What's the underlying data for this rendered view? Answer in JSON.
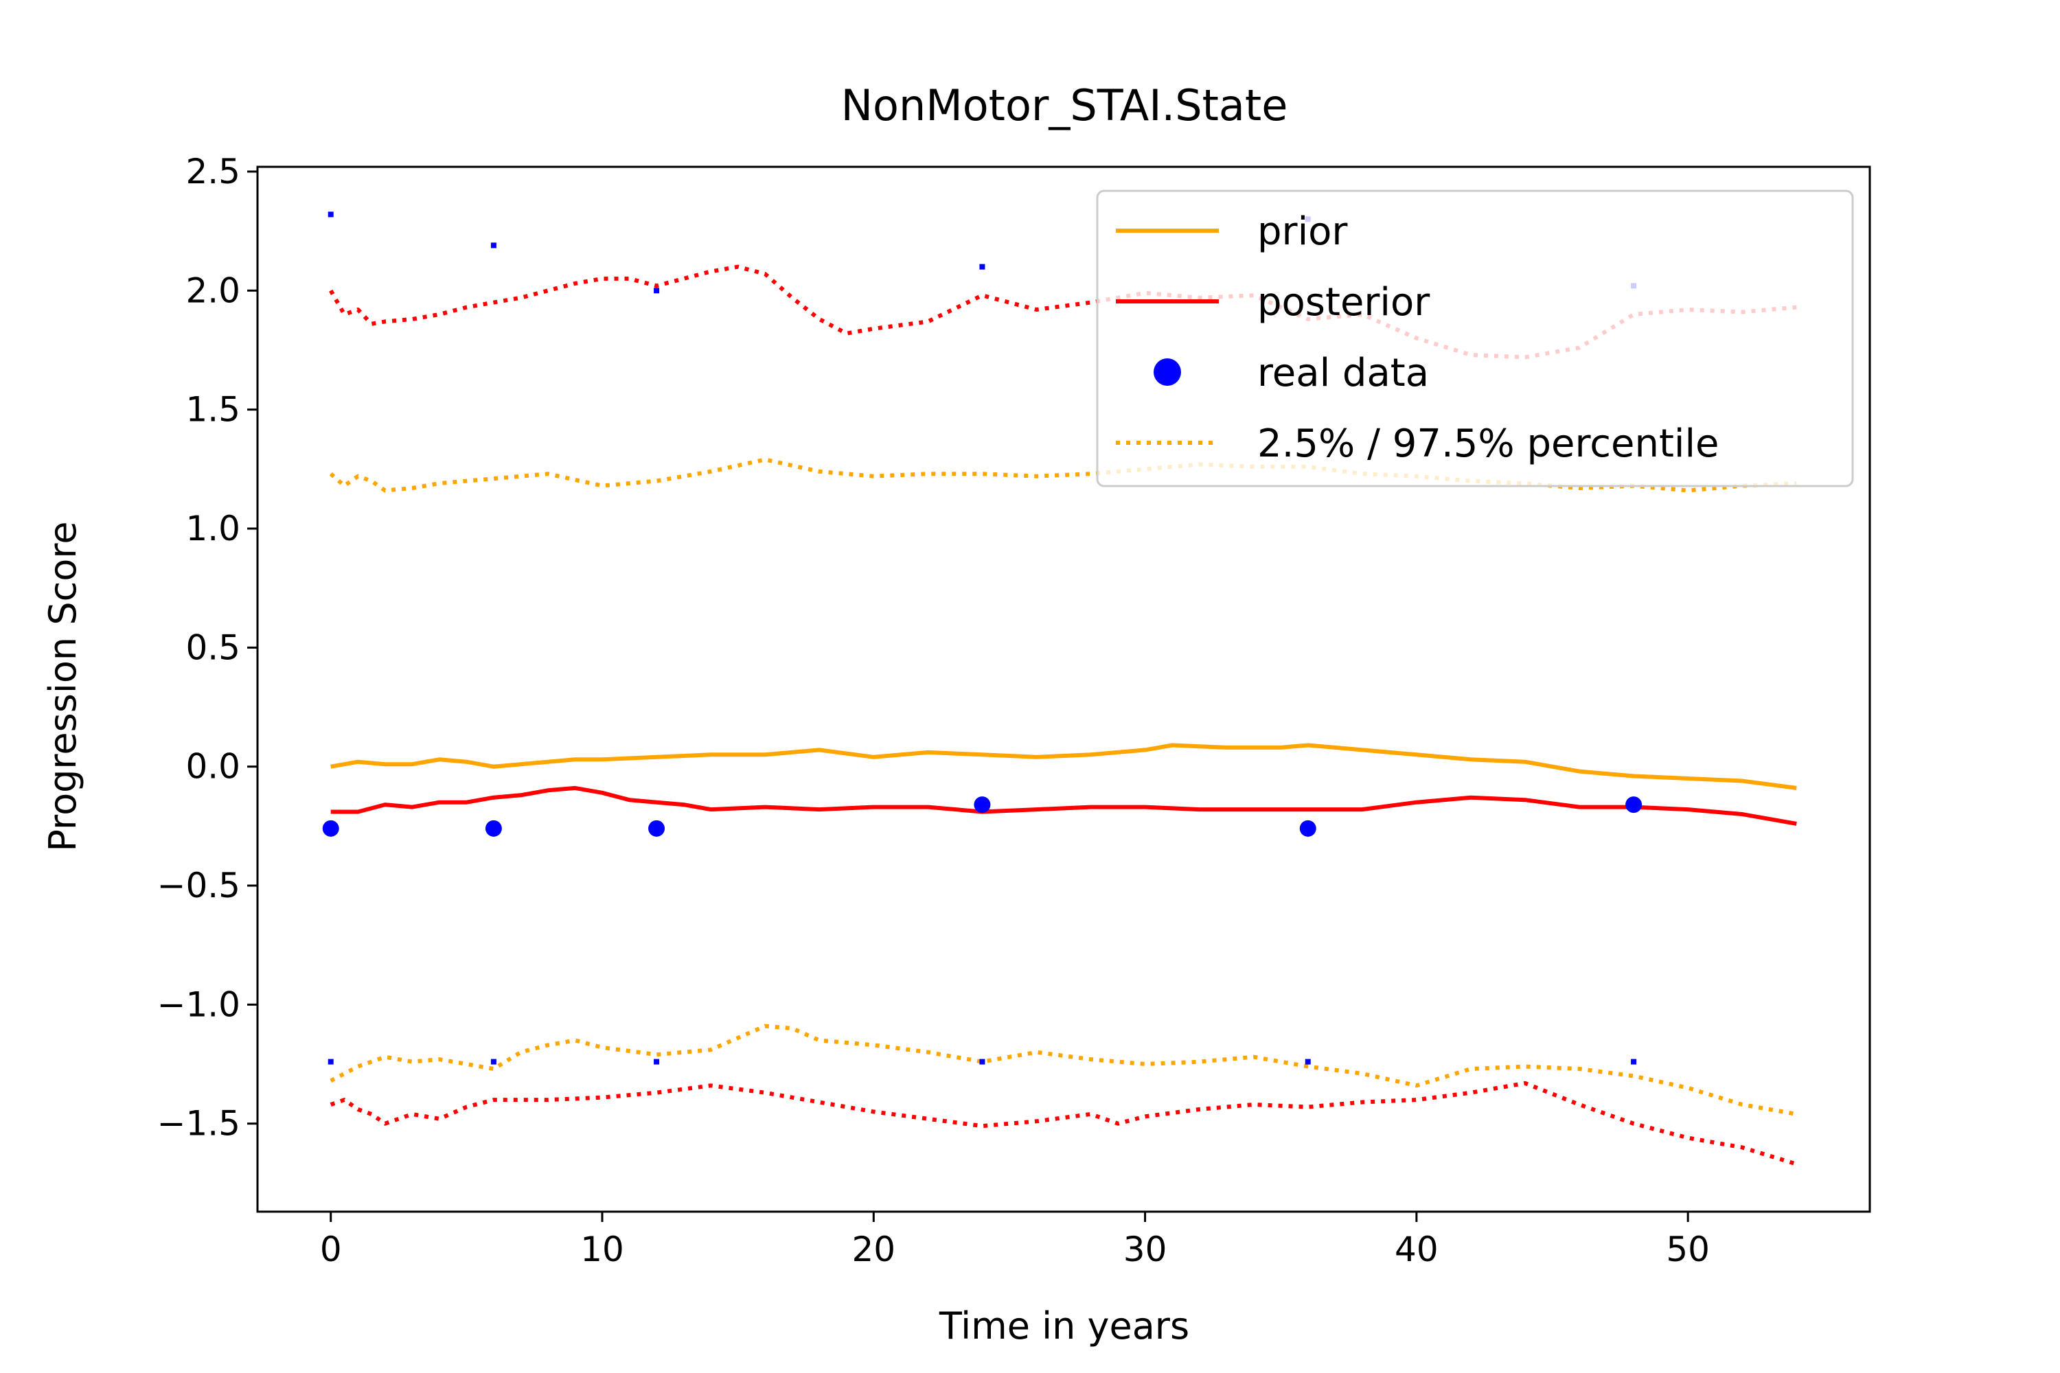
{
  "chart_data": {
    "type": "line",
    "title": "NonMotor_STAI.State",
    "xlabel": "Time in years",
    "ylabel": "Progression Score",
    "xlim": [
      -2.7,
      56.7
    ],
    "ylim": [
      -1.87,
      2.52
    ],
    "xticks": [
      0,
      10,
      20,
      30,
      40,
      50
    ],
    "xtick_labels": [
      "0",
      "10",
      "20",
      "30",
      "40",
      "50"
    ],
    "yticks": [
      -1.5,
      -1.0,
      -0.5,
      0.0,
      0.5,
      1.0,
      1.5,
      2.0,
      2.5
    ],
    "ytick_labels": [
      "−1.5",
      "−1.0",
      "−0.5",
      "0.0",
      "0.5",
      "1.0",
      "1.5",
      "2.0",
      "2.5"
    ],
    "grid": false,
    "legend_position": "top-right",
    "legend": [
      {
        "label": "prior",
        "style": "solid-line",
        "color": "#ffa500"
      },
      {
        "label": "posterior",
        "style": "solid-line",
        "color": "#ff0000"
      },
      {
        "label": "real data",
        "style": "marker",
        "color": "#0000ff"
      },
      {
        "label": "2.5% / 97.5% percentile",
        "style": "dotted-line",
        "color": "#ffa500"
      }
    ],
    "series": [
      {
        "key": "prior",
        "style": "solid",
        "color": "#ffa500",
        "x": [
          0,
          1,
          2,
          3,
          4,
          5,
          6,
          7,
          8,
          9,
          10,
          12,
          14,
          16,
          18,
          20,
          22,
          24,
          26,
          28,
          30,
          31,
          33,
          35,
          36,
          38,
          40,
          42,
          44,
          46,
          48,
          50,
          52,
          54
        ],
        "y": [
          0.0,
          0.02,
          0.01,
          0.01,
          0.03,
          0.02,
          0.0,
          0.01,
          0.02,
          0.03,
          0.03,
          0.04,
          0.05,
          0.05,
          0.07,
          0.04,
          0.06,
          0.05,
          0.04,
          0.05,
          0.07,
          0.09,
          0.08,
          0.08,
          0.09,
          0.07,
          0.05,
          0.03,
          0.02,
          -0.02,
          -0.04,
          -0.05,
          -0.06,
          -0.09
        ]
      },
      {
        "key": "posterior",
        "style": "solid",
        "color": "#ff0000",
        "x": [
          0,
          1,
          2,
          3,
          4,
          5,
          6,
          7,
          8,
          9,
          10,
          11,
          12,
          13,
          14,
          16,
          18,
          20,
          22,
          24,
          26,
          28,
          30,
          32,
          34,
          36,
          38,
          40,
          42,
          44,
          46,
          48,
          50,
          52,
          54
        ],
        "y": [
          -0.19,
          -0.19,
          -0.16,
          -0.17,
          -0.15,
          -0.15,
          -0.13,
          -0.12,
          -0.1,
          -0.09,
          -0.11,
          -0.14,
          -0.15,
          -0.16,
          -0.18,
          -0.17,
          -0.18,
          -0.17,
          -0.17,
          -0.19,
          -0.18,
          -0.17,
          -0.17,
          -0.18,
          -0.18,
          -0.18,
          -0.18,
          -0.15,
          -0.13,
          -0.14,
          -0.17,
          -0.17,
          -0.18,
          -0.2,
          -0.24
        ]
      },
      {
        "key": "prior_upper",
        "style": "dotted",
        "color": "#ffa500",
        "x": [
          0,
          0.5,
          1,
          1.5,
          2,
          3,
          4,
          5,
          6,
          8,
          10,
          12,
          14,
          16,
          18,
          20,
          22,
          24,
          26,
          28,
          30,
          32,
          34,
          36,
          38,
          40,
          42,
          44,
          46,
          48,
          50,
          52,
          54
        ],
        "y": [
          1.23,
          1.18,
          1.22,
          1.2,
          1.16,
          1.17,
          1.19,
          1.2,
          1.21,
          1.23,
          1.18,
          1.2,
          1.24,
          1.29,
          1.24,
          1.22,
          1.23,
          1.23,
          1.22,
          1.23,
          1.25,
          1.27,
          1.26,
          1.26,
          1.23,
          1.22,
          1.2,
          1.19,
          1.17,
          1.18,
          1.16,
          1.18,
          1.19
        ]
      },
      {
        "key": "prior_lower",
        "style": "dotted",
        "color": "#ffa500",
        "x": [
          0,
          1,
          2,
          3,
          4,
          5,
          6,
          7,
          8,
          9,
          10,
          12,
          14,
          16,
          17,
          18,
          20,
          22,
          24,
          26,
          28,
          30,
          32,
          34,
          36,
          38,
          40,
          42,
          44,
          46,
          48,
          50,
          52,
          54
        ],
        "y": [
          -1.32,
          -1.26,
          -1.22,
          -1.24,
          -1.23,
          -1.25,
          -1.27,
          -1.2,
          -1.17,
          -1.15,
          -1.18,
          -1.21,
          -1.19,
          -1.09,
          -1.1,
          -1.15,
          -1.17,
          -1.2,
          -1.24,
          -1.2,
          -1.23,
          -1.25,
          -1.24,
          -1.22,
          -1.26,
          -1.29,
          -1.34,
          -1.27,
          -1.26,
          -1.27,
          -1.3,
          -1.35,
          -1.42,
          -1.46
        ]
      },
      {
        "key": "posterior_upper",
        "style": "dotted",
        "color": "#ff0000",
        "x": [
          0,
          0.5,
          1,
          1.5,
          2,
          3,
          4,
          5,
          6,
          7,
          8,
          9,
          10,
          11,
          12,
          13,
          14,
          15,
          16,
          17,
          18,
          19,
          20,
          22,
          24,
          26,
          28,
          30,
          32,
          34,
          36,
          38,
          40,
          42,
          44,
          46,
          48,
          50,
          52,
          54
        ],
        "y": [
          2.0,
          1.9,
          1.92,
          1.86,
          1.87,
          1.88,
          1.9,
          1.93,
          1.95,
          1.97,
          2.0,
          2.03,
          2.05,
          2.05,
          2.02,
          2.05,
          2.08,
          2.1,
          2.07,
          1.97,
          1.88,
          1.82,
          1.84,
          1.87,
          1.98,
          1.92,
          1.95,
          1.99,
          1.97,
          1.98,
          1.88,
          1.9,
          1.8,
          1.73,
          1.72,
          1.76,
          1.9,
          1.92,
          1.91,
          1.93
        ]
      },
      {
        "key": "posterior_lower",
        "style": "dotted",
        "color": "#ff0000",
        "x": [
          0,
          0.5,
          1,
          1.5,
          2,
          3,
          4,
          5,
          6,
          8,
          10,
          12,
          14,
          16,
          18,
          20,
          22,
          24,
          26,
          28,
          29,
          30,
          32,
          34,
          36,
          38,
          40,
          42,
          44,
          46,
          48,
          50,
          52,
          54
        ],
        "y": [
          -1.42,
          -1.4,
          -1.44,
          -1.46,
          -1.5,
          -1.46,
          -1.48,
          -1.43,
          -1.4,
          -1.4,
          -1.39,
          -1.37,
          -1.34,
          -1.37,
          -1.41,
          -1.45,
          -1.48,
          -1.51,
          -1.49,
          -1.46,
          -1.5,
          -1.47,
          -1.44,
          -1.42,
          -1.43,
          -1.41,
          -1.4,
          -1.37,
          -1.33,
          -1.42,
          -1.5,
          -1.56,
          -1.6,
          -1.67
        ]
      }
    ],
    "real_data": {
      "color": "#0000ff",
      "x": [
        0,
        6,
        12,
        24,
        36,
        48
      ],
      "y": [
        -0.26,
        -0.26,
        -0.26,
        -0.16,
        -0.26,
        -0.16
      ]
    },
    "small_markers": {
      "color": "#0000ff",
      "x": [
        0,
        6,
        12,
        24,
        36,
        48,
        0,
        6,
        12,
        24,
        36,
        48
      ],
      "y": [
        2.32,
        2.19,
        2.0,
        2.1,
        2.3,
        2.02,
        -1.24,
        -1.24,
        -1.24,
        -1.24,
        -1.24,
        -1.24
      ]
    }
  }
}
